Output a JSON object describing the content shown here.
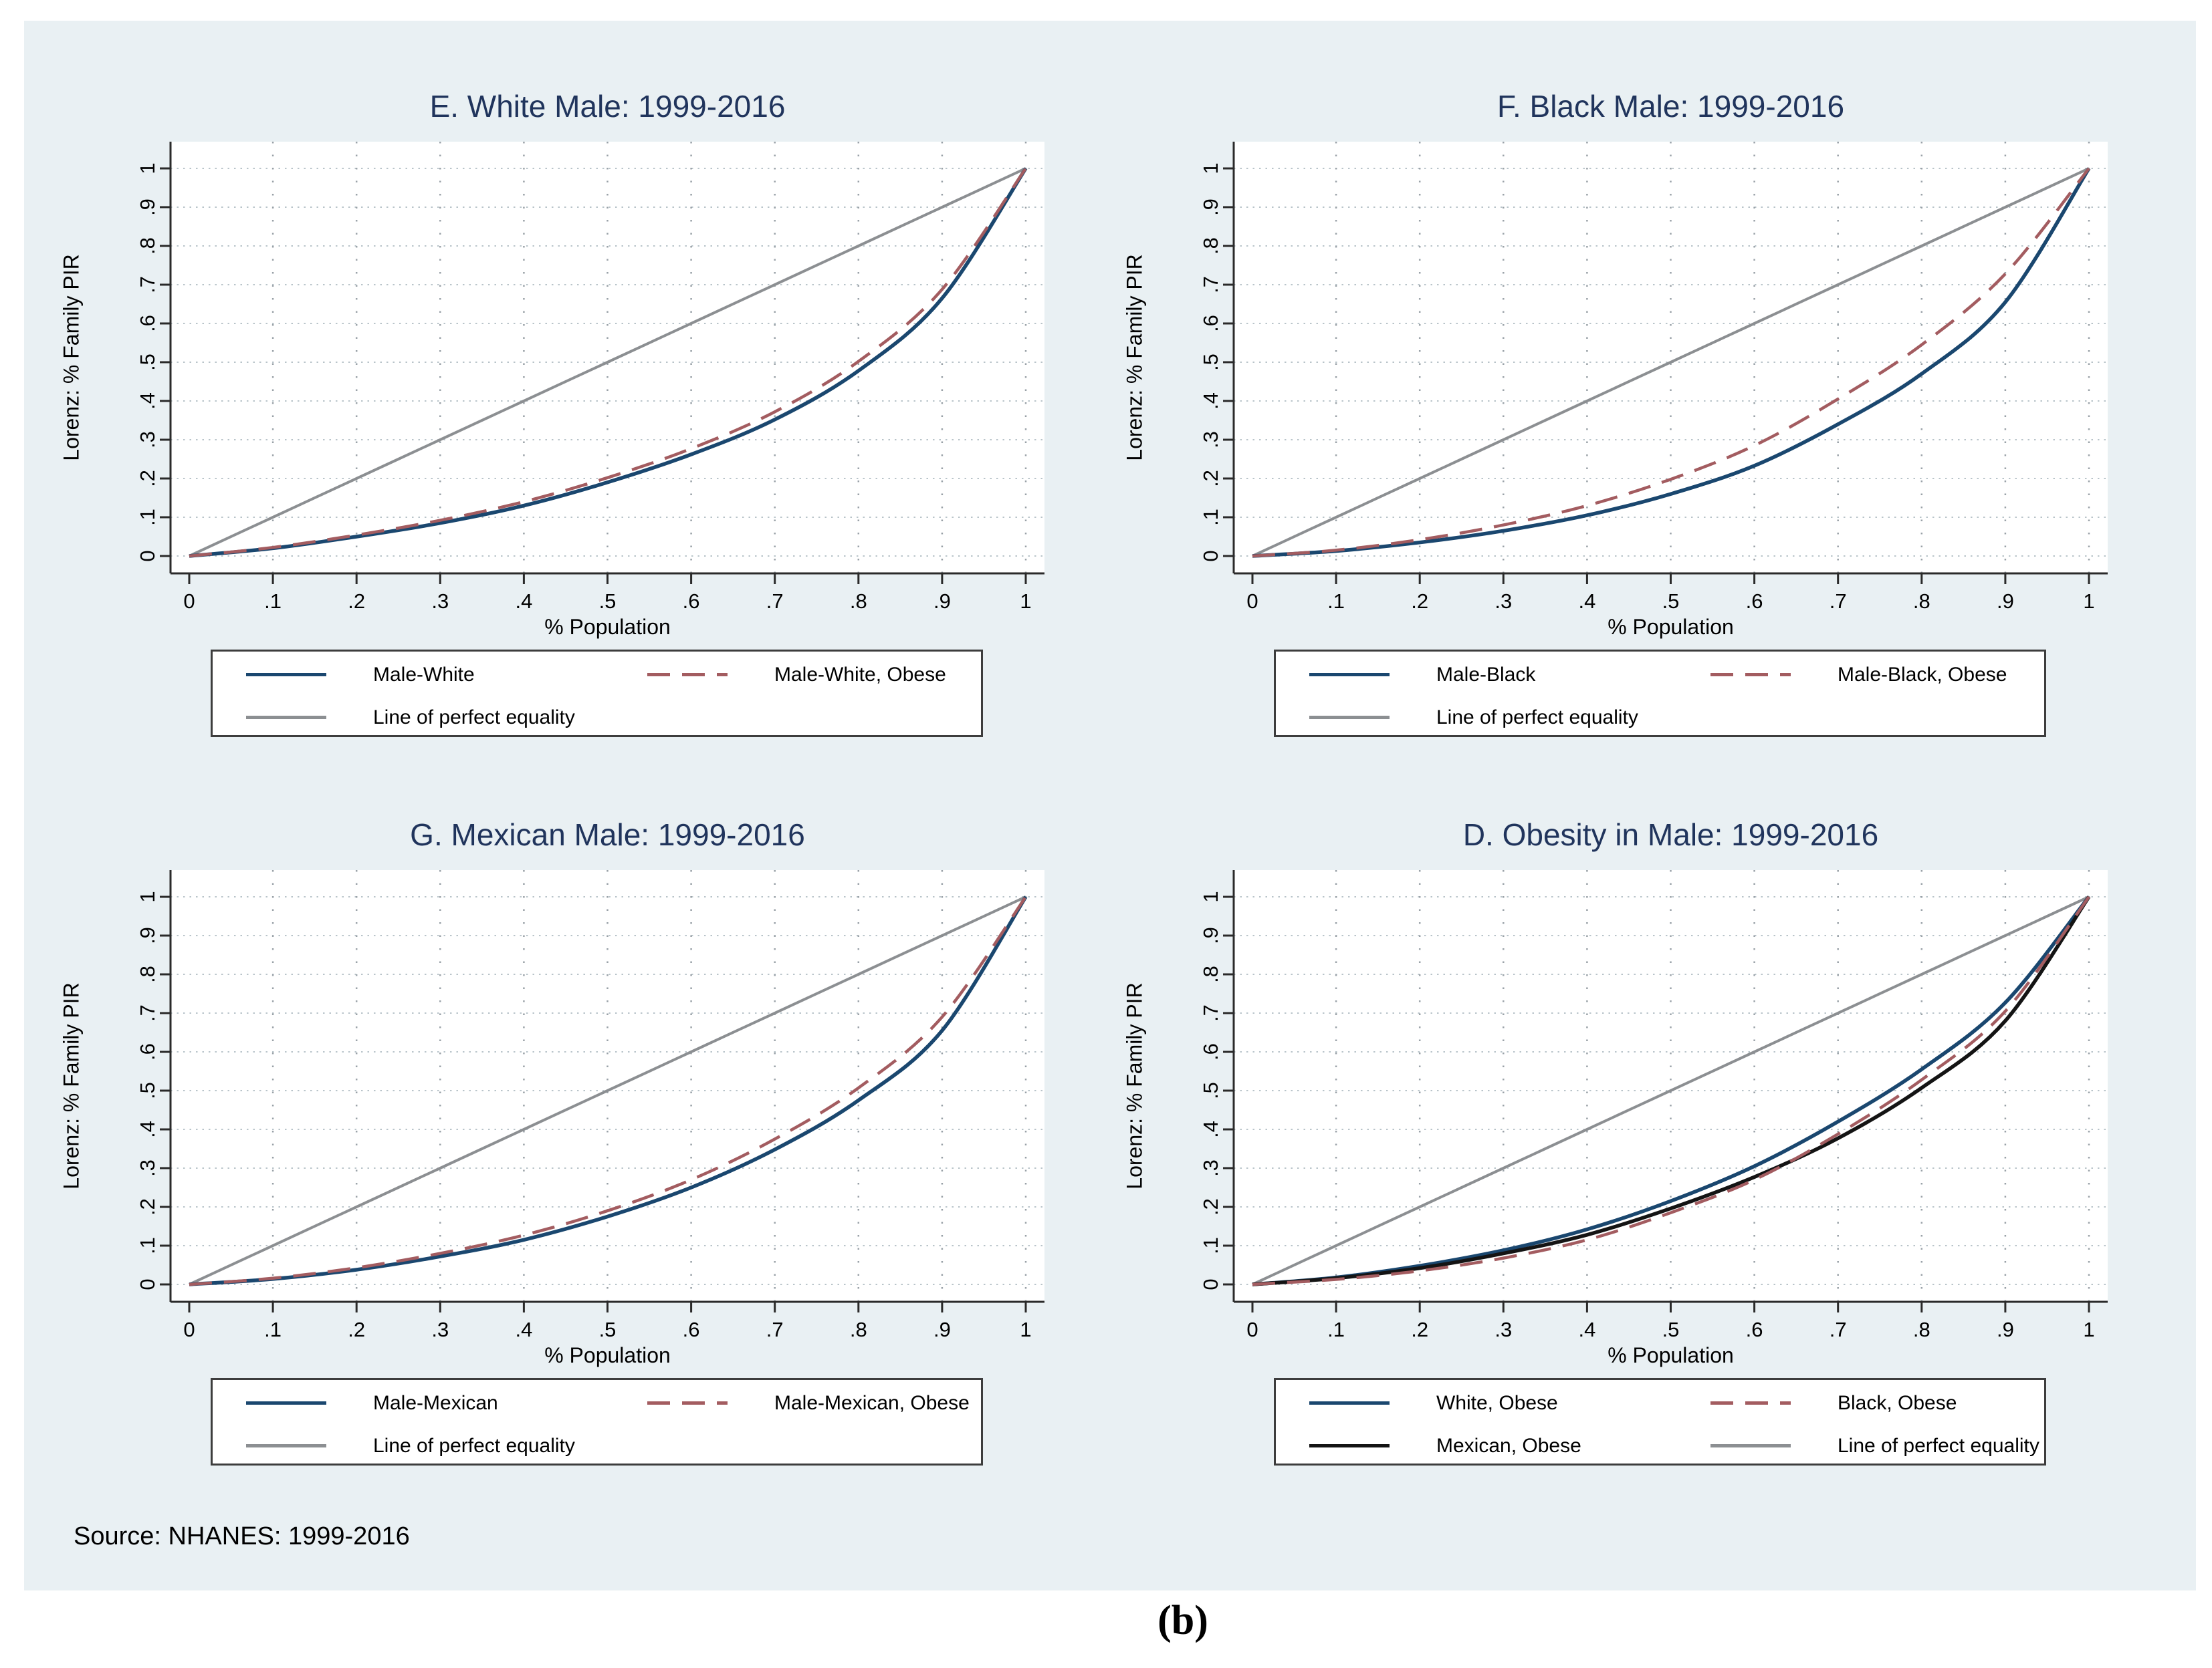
{
  "page": {
    "caption": "(b)"
  },
  "source_note": "Source: NHANES: 1999-2016",
  "colors": {
    "figure_background": "#e9f0f3",
    "plot_background": "#ffffff",
    "title_text": "#20345c",
    "axis_line": "#2a2a2a",
    "grid_horizontal": "#b9c4ca",
    "grid_vertical": "#9aa2a8",
    "navy": "#1a476f",
    "red": "#a35c60",
    "black": "#141414",
    "gray": "#8c8f92",
    "legend_border": "#3d3d3d"
  },
  "axes": {
    "x_title": "% Population",
    "y_title": "Lorenz: % Family PIR",
    "x_ticks": [
      "0",
      ".1",
      ".2",
      ".3",
      ".4",
      ".5",
      ".6",
      ".7",
      ".8",
      ".9",
      "1"
    ],
    "y_ticks": [
      "0",
      ".1",
      ".2",
      ".3",
      ".4",
      ".5",
      ".6",
      ".7",
      ".8",
      ".9",
      "1"
    ],
    "x_range": [
      0,
      1
    ],
    "y_range": [
      0,
      1
    ],
    "grid": true,
    "legend_position": "below"
  },
  "chart_data": [
    {
      "type": "line",
      "title": "E. White Male: 1999-2016",
      "xlabel": "% Population",
      "ylabel": "Lorenz: % Family PIR",
      "xlim": [
        0,
        1
      ],
      "ylim": [
        0,
        1
      ],
      "x_ticks": [
        "0",
        ".1",
        ".2",
        ".3",
        ".4",
        ".5",
        ".6",
        ".7",
        ".8",
        ".9",
        "1"
      ],
      "y_ticks": [
        "0",
        ".1",
        ".2",
        ".3",
        ".4",
        ".5",
        ".6",
        ".7",
        ".8",
        ".9",
        "1"
      ],
      "x": [
        0,
        0.1,
        0.2,
        0.3,
        0.4,
        0.5,
        0.6,
        0.7,
        0.8,
        0.9,
        1
      ],
      "series": [
        {
          "name": "Male-White",
          "color": "#1a476f",
          "style": "solid",
          "values": [
            0,
            0.02,
            0.05,
            0.085,
            0.13,
            0.19,
            0.262,
            0.352,
            0.478,
            0.665,
            1
          ]
        },
        {
          "name": "Male-White, Obese",
          "color": "#a35c60",
          "style": "dashed",
          "values": [
            0,
            0.022,
            0.054,
            0.092,
            0.14,
            0.202,
            0.277,
            0.372,
            0.502,
            0.688,
            1
          ]
        },
        {
          "name": "Line of perfect equality",
          "color": "#8c8f92",
          "style": "solid",
          "values": [
            0,
            0.1,
            0.2,
            0.3,
            0.4,
            0.5,
            0.6,
            0.7,
            0.8,
            0.9,
            1
          ]
        }
      ],
      "legend_rows": [
        [
          0,
          1
        ],
        [
          2
        ]
      ]
    },
    {
      "type": "line",
      "title": "F. Black Male: 1999-2016",
      "xlabel": "% Population",
      "ylabel": "Lorenz: % Family PIR",
      "xlim": [
        0,
        1
      ],
      "ylim": [
        0,
        1
      ],
      "x_ticks": [
        "0",
        ".1",
        ".2",
        ".3",
        ".4",
        ".5",
        ".6",
        ".7",
        ".8",
        ".9",
        "1"
      ],
      "y_ticks": [
        "0",
        ".1",
        ".2",
        ".3",
        ".4",
        ".5",
        ".6",
        ".7",
        ".8",
        ".9",
        "1"
      ],
      "x": [
        0,
        0.1,
        0.2,
        0.3,
        0.4,
        0.5,
        0.6,
        0.7,
        0.8,
        0.9,
        1
      ],
      "series": [
        {
          "name": "Male-Black",
          "color": "#1a476f",
          "style": "solid",
          "values": [
            0,
            0.013,
            0.035,
            0.065,
            0.105,
            0.16,
            0.233,
            0.34,
            0.47,
            0.655,
            1
          ]
        },
        {
          "name": "Male-Black, Obese",
          "color": "#a35c60",
          "style": "dashed",
          "values": [
            0,
            0.015,
            0.042,
            0.08,
            0.13,
            0.198,
            0.285,
            0.405,
            0.545,
            0.728,
            1
          ]
        },
        {
          "name": "Line of perfect equality",
          "color": "#8c8f92",
          "style": "solid",
          "values": [
            0,
            0.1,
            0.2,
            0.3,
            0.4,
            0.5,
            0.6,
            0.7,
            0.8,
            0.9,
            1
          ]
        }
      ],
      "legend_rows": [
        [
          0,
          1
        ],
        [
          2
        ]
      ]
    },
    {
      "type": "line",
      "title": "G. Mexican Male: 1999-2016",
      "xlabel": "% Population",
      "ylabel": "Lorenz: % Family PIR",
      "xlim": [
        0,
        1
      ],
      "ylim": [
        0,
        1
      ],
      "x_ticks": [
        "0",
        ".1",
        ".2",
        ".3",
        ".4",
        ".5",
        ".6",
        ".7",
        ".8",
        ".9",
        "1"
      ],
      "y_ticks": [
        "0",
        ".1",
        ".2",
        ".3",
        ".4",
        ".5",
        ".6",
        ".7",
        ".8",
        ".9",
        "1"
      ],
      "x": [
        0,
        0.1,
        0.2,
        0.3,
        0.4,
        0.5,
        0.6,
        0.7,
        0.8,
        0.9,
        1
      ],
      "series": [
        {
          "name": "Male-Mexican",
          "color": "#1a476f",
          "style": "solid",
          "values": [
            0,
            0.014,
            0.038,
            0.072,
            0.115,
            0.175,
            0.25,
            0.348,
            0.475,
            0.655,
            1
          ]
        },
        {
          "name": "Male-Mexican, Obese",
          "color": "#a35c60",
          "style": "dashed",
          "values": [
            0,
            0.016,
            0.043,
            0.08,
            0.127,
            0.19,
            0.27,
            0.375,
            0.507,
            0.69,
            1
          ]
        },
        {
          "name": "Line of perfect equality",
          "color": "#8c8f92",
          "style": "solid",
          "values": [
            0,
            0.1,
            0.2,
            0.3,
            0.4,
            0.5,
            0.6,
            0.7,
            0.8,
            0.9,
            1
          ]
        }
      ],
      "legend_rows": [
        [
          0,
          1
        ],
        [
          2
        ]
      ]
    },
    {
      "type": "line",
      "title": "D. Obesity in Male: 1999-2016",
      "xlabel": "% Population",
      "ylabel": "Lorenz: % Family PIR",
      "xlim": [
        0,
        1
      ],
      "ylim": [
        0,
        1
      ],
      "x_ticks": [
        "0",
        ".1",
        ".2",
        ".3",
        ".4",
        ".5",
        ".6",
        ".7",
        ".8",
        ".9",
        "1"
      ],
      "y_ticks": [
        "0",
        ".1",
        ".2",
        ".3",
        ".4",
        ".5",
        ".6",
        ".7",
        ".8",
        ".9",
        "1"
      ],
      "x": [
        0,
        0.1,
        0.2,
        0.3,
        0.4,
        0.5,
        0.6,
        0.7,
        0.8,
        0.9,
        1
      ],
      "series": [
        {
          "name": "White, Obese",
          "color": "#1a476f",
          "style": "solid",
          "values": [
            0,
            0.018,
            0.048,
            0.088,
            0.142,
            0.215,
            0.305,
            0.42,
            0.555,
            0.727,
            1
          ]
        },
        {
          "name": "Black, Obese",
          "color": "#a35c60",
          "style": "dashed",
          "values": [
            0,
            0.013,
            0.035,
            0.068,
            0.115,
            0.185,
            0.27,
            0.388,
            0.528,
            0.705,
            1
          ]
        },
        {
          "name": "Mexican, Obese",
          "color": "#141414",
          "style": "solid",
          "values": [
            0,
            0.016,
            0.042,
            0.08,
            0.128,
            0.196,
            0.277,
            0.377,
            0.507,
            0.68,
            1
          ]
        },
        {
          "name": "Line of perfect equality",
          "color": "#8c8f92",
          "style": "solid",
          "values": [
            0,
            0.1,
            0.2,
            0.3,
            0.4,
            0.5,
            0.6,
            0.7,
            0.8,
            0.9,
            1
          ]
        }
      ],
      "legend_rows": [
        [
          0,
          1
        ],
        [
          2,
          3
        ]
      ]
    }
  ]
}
